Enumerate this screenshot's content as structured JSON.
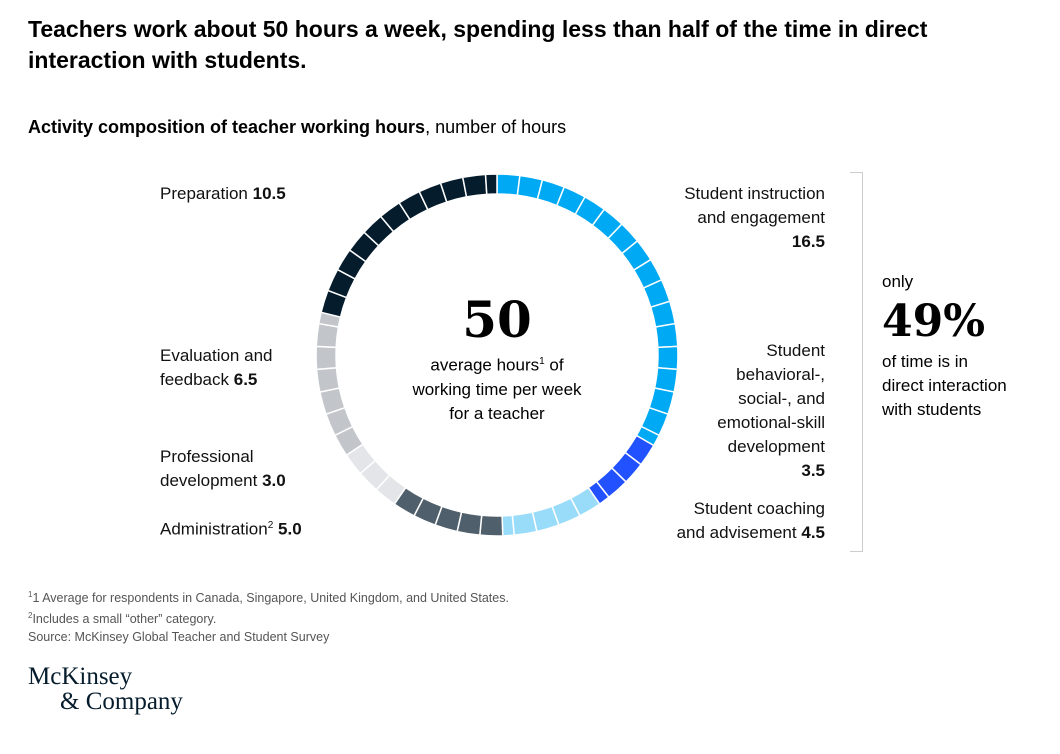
{
  "title": "Teachers work about 50 hours a week, spending less than half of the time in direct interaction with students.",
  "chart_data": {
    "type": "pie",
    "title": "Activity composition of teacher working hours",
    "unit": "number of hours",
    "center": {
      "value": "50",
      "text_a": "average hours",
      "sup": "1",
      "text_b": " of working time per week for a teacher"
    },
    "slices": [
      {
        "name": "Student instruction and engagement",
        "label_a": "Student instruction",
        "label_b": "and engagement",
        "value": 16.5,
        "value_label": "16.5",
        "color": "#00a9f4"
      },
      {
        "name": "Student behavioral-, social-, and emotional-skill development",
        "label_a": "Student",
        "label_b": "behavioral-,",
        "label_c": "social-, and",
        "label_d": "emotional-skill",
        "label_e": "development",
        "value": 3.5,
        "value_label": "3.5",
        "color": "#2251ff"
      },
      {
        "name": "Student coaching and advisement",
        "label_a": "Student coaching",
        "label_b": "and advisement",
        "value": 4.5,
        "value_label": "4.5",
        "color": "#99dcfa"
      },
      {
        "name": "Administration",
        "label_a": "Administration",
        "sup": "2",
        "value": 5.0,
        "value_label": "5.0",
        "color": "#4f5f6b"
      },
      {
        "name": "Professional development",
        "label_a": "Professional",
        "label_b": "development",
        "value": 3.0,
        "value_label": "3.0",
        "color": "#e3e5e8"
      },
      {
        "name": "Evaluation and feedback",
        "label_a": "Evaluation and",
        "label_b": "feedback",
        "value": 6.5,
        "value_label": "6.5",
        "color": "#c2c6cb"
      },
      {
        "name": "Preparation",
        "label_a": "Preparation",
        "value": 10.5,
        "value_label": "10.5",
        "color": "#051c2c"
      }
    ],
    "annotation": {
      "pre": "only",
      "value": "49%",
      "line1": "of time is in",
      "line2": "direct interaction",
      "line3": "with students"
    }
  },
  "footnotes": [
    "1 Average for respondents in Canada, Singapore, United Kingdom, and United States.",
    "Includes a small “other” category.",
    "Source: McKinsey Global Teacher and Student Survey"
  ],
  "footnote_marks": [
    "1",
    "2"
  ],
  "logo": {
    "line1": "McKinsey",
    "line2": "& Company"
  }
}
